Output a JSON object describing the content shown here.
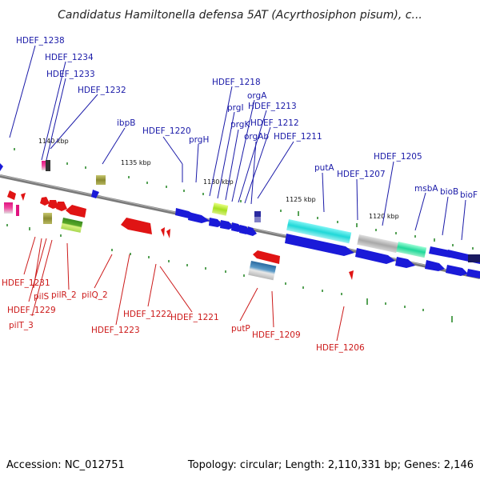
{
  "title": "Candidatus Hamiltonella defensa 5AT (Acyrthosiphon pisum), c...",
  "footer": {
    "accession": "Accession: NC_012751",
    "summary": "Topology: circular; Length: 2,110,331 bp; Genes: 2,146"
  },
  "colors": {
    "forward_gene": "#1a1ad8",
    "reverse_gene": "#e01414",
    "top_label": "#1a1aa8",
    "bottom_label": "#cc1a1a",
    "tick": "#2d8a2d",
    "backbone": "#7a7a7a"
  },
  "scale_labels": [
    "1140 kbp",
    "1135 kbp",
    "1130 kbp",
    "1125 kbp",
    "1120 kbp"
  ],
  "top_genes": [
    "HDEF_1238",
    "HDEF_1234",
    "HDEF_1233",
    "HDEF_1232",
    "ibpB",
    "HDEF_1220",
    "prgH",
    "HDEF_1218",
    "prgI",
    "prgK",
    "orgA",
    "HDEF_1213",
    "HDEF_1212",
    "orgAb",
    "HDEF_1211",
    "putA",
    "HDEF_1207",
    "HDEF_1205",
    "msbA",
    "bioB",
    "bioF"
  ],
  "bottom_genes": [
    "HDEF_1231",
    "pilS",
    "HDEF_1229",
    "pilT_3",
    "pilR_2",
    "pilQ_2",
    "HDEF_1223",
    "HDEF_1222",
    "HDEF_1221",
    "putP",
    "HDEF_1209",
    "HDEF_1206"
  ]
}
